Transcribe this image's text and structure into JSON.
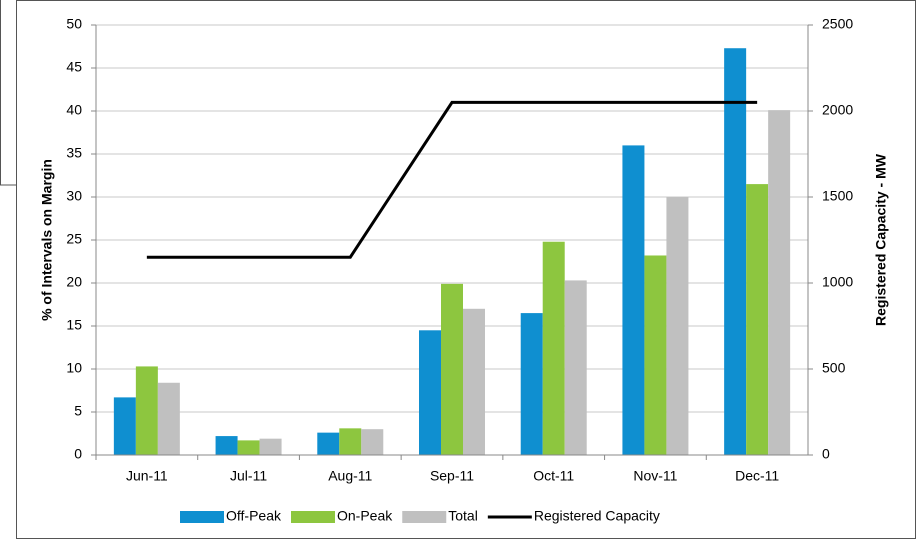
{
  "chart_data": {
    "type": "bar",
    "categories": [
      "Jun-11",
      "Jul-11",
      "Aug-11",
      "Sep-11",
      "Oct-11",
      "Nov-11",
      "Dec-11"
    ],
    "y_label": "% of Intervals on Margin",
    "y2_label": "Registered Capacity - MW",
    "series": [
      {
        "name": "Off-Peak",
        "color": "#0f8fd0",
        "values": [
          6.7,
          2.2,
          2.6,
          14.5,
          16.5,
          36,
          47.3
        ]
      },
      {
        "name": "On-Peak",
        "color": "#8dc63f",
        "values": [
          10.3,
          1.7,
          3.1,
          19.9,
          24.8,
          23.2,
          31.5
        ]
      },
      {
        "name": "Total",
        "color": "#c0c0c0",
        "values": [
          8.4,
          1.9,
          3.0,
          17.0,
          20.3,
          30.0,
          40.1
        ]
      },
      {
        "name": "Registered Capacity",
        "color": "#000000",
        "type": "line",
        "axis": "y2",
        "values": [
          1150,
          1150,
          1150,
          2050,
          2050,
          2050,
          2050
        ]
      }
    ],
    "ylim": [
      0,
      50
    ],
    "yticks": [
      0,
      5,
      10,
      15,
      20,
      25,
      30,
      35,
      40,
      45,
      50
    ],
    "y2lim": [
      0,
      2500
    ],
    "y2ticks": [
      0,
      500,
      1000,
      1500,
      2000,
      2500
    ],
    "grid": true,
    "legend": "bottom"
  }
}
